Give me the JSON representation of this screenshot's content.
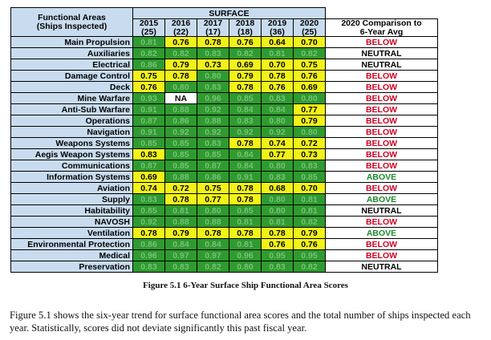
{
  "header": {
    "group_label": "SURFACE",
    "area_title_line1": "Functional Areas",
    "area_title_line2": "(Ships Inspected)",
    "comparison_line1": "2020 Comparison to",
    "comparison_line2": "6-Year Avg",
    "years": [
      {
        "year": "2015",
        "ships": "(25)"
      },
      {
        "year": "2016",
        "ships": "(22)"
      },
      {
        "year": "2017",
        "ships": "(17)"
      },
      {
        "year": "2018",
        "ships": "(18)"
      },
      {
        "year": "2019",
        "ships": "(36)"
      },
      {
        "year": "2020",
        "ships": "(25)"
      }
    ]
  },
  "colors": {
    "highlight": "#f2f218",
    "below_avg_cell": "#2f9a2f",
    "header_bg": "#c9dcef",
    "below_text": "#d00020",
    "above_text": "#1a8a2a",
    "neutral_text": "#000000"
  },
  "rows": [
    {
      "area": "Main Propulsion",
      "values": [
        "0.81",
        "0.76",
        "0.78",
        "0.76",
        "0.64",
        "0.70"
      ],
      "hi": [
        0,
        1,
        1,
        1,
        1,
        1
      ],
      "comparison": "BELOW"
    },
    {
      "area": "Auxiliaries",
      "values": [
        "0.82",
        "0.82",
        "0.83",
        "0.82",
        "0.81",
        "0.82"
      ],
      "hi": [
        0,
        0,
        0,
        0,
        0,
        0
      ],
      "comparison": "NEUTRAL"
    },
    {
      "area": "Electrical",
      "values": [
        "0.86",
        "0.79",
        "0.73",
        "0.69",
        "0.70",
        "0.75"
      ],
      "hi": [
        0,
        1,
        1,
        1,
        1,
        1
      ],
      "comparison": "NEUTRAL"
    },
    {
      "area": "Damage Control",
      "values": [
        "0.75",
        "0.78",
        "0.80",
        "0.79",
        "0.78",
        "0.76"
      ],
      "hi": [
        1,
        1,
        0,
        1,
        1,
        1
      ],
      "comparison": "BELOW"
    },
    {
      "area": "Deck",
      "values": [
        "0.76",
        "0.80",
        "0.83",
        "0.78",
        "0.76",
        "0.69"
      ],
      "hi": [
        1,
        0,
        0,
        1,
        1,
        1
      ],
      "comparison": "BELOW"
    },
    {
      "area": "Mine Warfare",
      "values": [
        "0.93",
        "NA",
        "0.96",
        "0.85",
        "0.83",
        "0.80"
      ],
      "hi": [
        0,
        2,
        0,
        0,
        0,
        0
      ],
      "comparison": "BELOW"
    },
    {
      "area": "Anti-Sub Warfare",
      "values": [
        "0.91",
        "0.88",
        "0.92",
        "0.84",
        "0.84",
        "0.77"
      ],
      "hi": [
        0,
        0,
        0,
        0,
        0,
        1
      ],
      "comparison": "BELOW"
    },
    {
      "area": "Operations",
      "values": [
        "0.87",
        "0.86",
        "0.88",
        "0.83",
        "0.80",
        "0.79"
      ],
      "hi": [
        0,
        0,
        0,
        0,
        0,
        1
      ],
      "comparison": "BELOW"
    },
    {
      "area": "Navigation",
      "values": [
        "0.91",
        "0.92",
        "0.92",
        "0.92",
        "0.92",
        "0.80"
      ],
      "hi": [
        0,
        0,
        0,
        0,
        0,
        0
      ],
      "comparison": "BELOW"
    },
    {
      "area": "Weapons Systems",
      "values": [
        "0.85",
        "0.85",
        "0.83",
        "0.78",
        "0.74",
        "0.72"
      ],
      "hi": [
        0,
        0,
        0,
        1,
        1,
        1
      ],
      "comparison": "BELOW"
    },
    {
      "area": "Aegis Weapon Systems",
      "values": [
        "0.83",
        "0.85",
        "0.85",
        "0.84",
        "0.77",
        "0.73"
      ],
      "hi": [
        1,
        0,
        0,
        0,
        1,
        1
      ],
      "comparison": "BELOW"
    },
    {
      "area": "Communications",
      "values": [
        "0.87",
        "0.85",
        "0.87",
        "0.84",
        "0.80",
        "0.83"
      ],
      "hi": [
        0,
        0,
        0,
        0,
        0,
        0
      ],
      "comparison": "BELOW"
    },
    {
      "area": "Information Systems",
      "values": [
        "0.69",
        "0.88",
        "0.86",
        "0.91",
        "0.83",
        "0.85"
      ],
      "hi": [
        1,
        0,
        0,
        0,
        0,
        0
      ],
      "comparison": "ABOVE"
    },
    {
      "area": "Aviation",
      "values": [
        "0.74",
        "0.72",
        "0.75",
        "0.78",
        "0.68",
        "0.70"
      ],
      "hi": [
        1,
        1,
        1,
        1,
        1,
        1
      ],
      "comparison": "BELOW"
    },
    {
      "area": "Supply",
      "values": [
        "0.83",
        "0.78",
        "0.77",
        "0.78",
        "0.80",
        "0.81"
      ],
      "hi": [
        0,
        1,
        1,
        1,
        0,
        0
      ],
      "comparison": "ABOVE"
    },
    {
      "area": "Habitability",
      "values": [
        "0.85",
        "0.81",
        "0.80",
        "0.85",
        "0.80",
        "0.81"
      ],
      "hi": [
        0,
        0,
        0,
        0,
        0,
        0
      ],
      "comparison": "NEUTRAL"
    },
    {
      "area": "NAVOSH",
      "values": [
        "0.92",
        "0.88",
        "0.88",
        "0.81",
        "0.81",
        "0.82"
      ],
      "hi": [
        0,
        0,
        0,
        0,
        0,
        0
      ],
      "comparison": "BELOW"
    },
    {
      "area": "Ventilation",
      "values": [
        "0.78",
        "0.79",
        "0.78",
        "0.78",
        "0.78",
        "0.79"
      ],
      "hi": [
        1,
        1,
        1,
        1,
        1,
        1
      ],
      "comparison": "ABOVE"
    },
    {
      "area": "Environmental Protection",
      "values": [
        "0.86",
        "0.84",
        "0.84",
        "0.81",
        "0.76",
        "0.76"
      ],
      "hi": [
        0,
        0,
        0,
        0,
        1,
        1
      ],
      "comparison": "BELOW"
    },
    {
      "area": "Medical",
      "values": [
        "0.96",
        "0.97",
        "0.97",
        "0.96",
        "0.95",
        "0.95"
      ],
      "hi": [
        0,
        0,
        0,
        0,
        0,
        0
      ],
      "comparison": "BELOW"
    },
    {
      "area": "Preservation",
      "values": [
        "0.83",
        "0.83",
        "0.82",
        "0.80",
        "0.83",
        "0.82"
      ],
      "hi": [
        0,
        0,
        0,
        0,
        0,
        0
      ],
      "comparison": "NEUTRAL"
    }
  ],
  "caption": "Figure 5.1 6-Year Surface Ship Functional Area Scores",
  "paragraph": "Figure 5.1 shows the six-year trend for surface functional area scores and the total number of ships inspected each year. Statistically, scores did not deviate significantly this past fiscal year."
}
